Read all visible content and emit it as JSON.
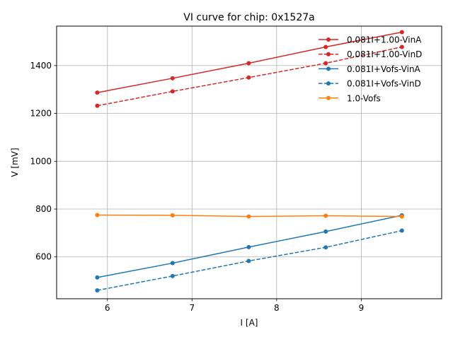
{
  "chart_data": {
    "type": "line",
    "title": "VI curve for chip: 0x1527a",
    "xlabel": "I [A]",
    "ylabel": "V [mV]",
    "xlim": [
      5.4,
      9.95
    ],
    "ylim": [
      425,
      1565
    ],
    "xticks": [
      6,
      7,
      8,
      9
    ],
    "yticks": [
      600,
      800,
      1000,
      1200,
      1400
    ],
    "grid": true,
    "legend_position": "top-right",
    "x": [
      5.88,
      6.77,
      7.67,
      8.58,
      9.48
    ],
    "series": [
      {
        "name": "0.081I+1.00-VinA",
        "color": "#d62728",
        "dash": "solid",
        "values": [
          1287,
          1347,
          1410,
          1478,
          1540
        ]
      },
      {
        "name": "0.081I+1.00-VinD",
        "color": "#d62728",
        "dash": "dashed",
        "values": [
          1232,
          1292,
          1350,
          1410,
          1478
        ]
      },
      {
        "name": "0.081I+Vofs-VinA",
        "color": "#1f77b4",
        "dash": "solid",
        "values": [
          514,
          574,
          641,
          706,
          774
        ]
      },
      {
        "name": "0.081I+Vofs-VinD",
        "color": "#1f77b4",
        "dash": "dashed",
        "values": [
          460,
          520,
          583,
          640,
          710
        ]
      },
      {
        "name": "1.0-Vofs",
        "color": "#ff7f0e",
        "dash": "solid",
        "values": [
          775,
          774,
          769,
          772,
          769
        ]
      }
    ]
  }
}
